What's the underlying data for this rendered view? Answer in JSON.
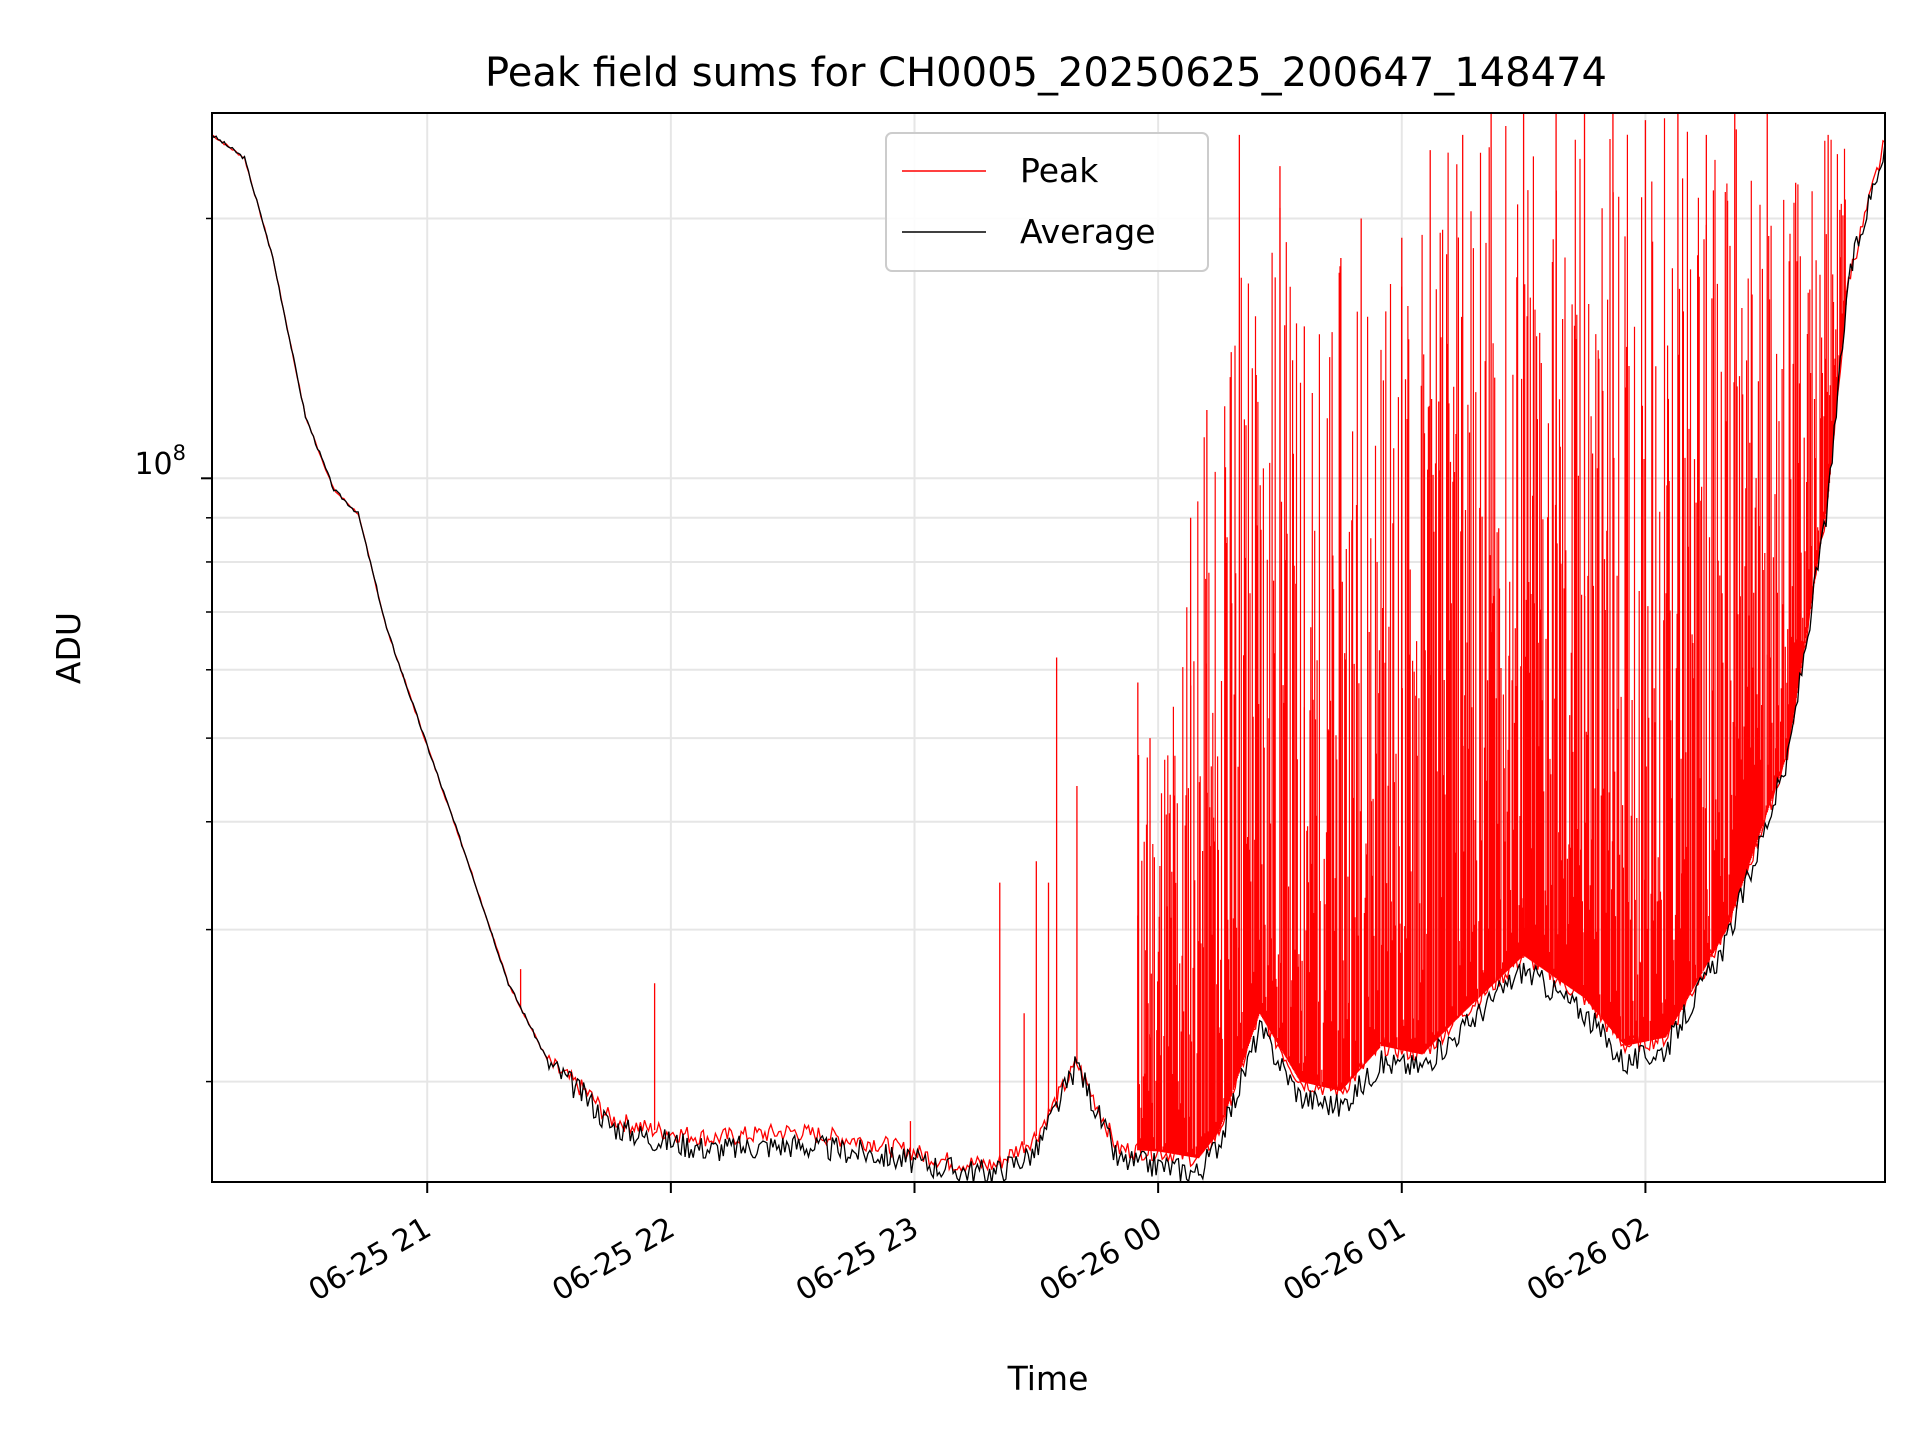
{
  "chart_data": {
    "type": "line",
    "title": "Peak field sums for CH0005_20250625_200647_148474",
    "xlabel": "Time",
    "ylabel": "ADU",
    "yscale": "log",
    "grid": true,
    "legend_placement": "top-center",
    "x_ticks": [
      "06-25 21",
      "06-25 22",
      "06-25 23",
      "06-26 00",
      "06-26 01",
      "06-26 02"
    ],
    "y_major_tick_label": "10",
    "y_major_tick_exponent": "8",
    "ylim_approx": [
      15300000,
      265000000
    ],
    "xlim_approx": [
      "2025-06-25 20:07",
      "2025-06-26 02:59"
    ],
    "series": [
      {
        "name": "Peak",
        "color": "#ff0000",
        "baseline": [
          [
            "2025-06-25 20:07",
            250000000
          ],
          [
            "2025-06-25 20:15",
            235000000
          ],
          [
            "2025-06-25 20:22",
            180000000
          ],
          [
            "2025-06-25 20:30",
            118000000
          ],
          [
            "2025-06-25 20:37",
            97000000
          ],
          [
            "2025-06-25 20:43",
            91000000
          ],
          [
            "2025-06-25 20:50",
            67000000
          ],
          [
            "2025-06-25 21:00",
            49000000
          ],
          [
            "2025-06-25 21:10",
            36000000
          ],
          [
            "2025-06-25 21:20",
            26000000
          ],
          [
            "2025-06-25 21:30",
            21000000
          ],
          [
            "2025-06-25 21:40",
            19300000
          ],
          [
            "2025-06-25 21:45",
            18100000
          ],
          [
            "2025-06-25 21:55",
            17600000
          ],
          [
            "2025-06-25 22:10",
            17200000
          ],
          [
            "2025-06-25 22:30",
            17500000
          ],
          [
            "2025-06-25 22:50",
            17000000
          ],
          [
            "2025-06-25 23:10",
            16100000
          ],
          [
            "2025-06-25 23:20",
            16000000
          ],
          [
            "2025-06-25 23:30",
            17300000
          ],
          [
            "2025-06-25 23:40",
            21000000
          ],
          [
            "2025-06-25 23:50",
            16700000
          ],
          [
            "2025-06-26 00:00",
            16600000
          ],
          [
            "2025-06-26 00:10",
            16300000
          ],
          [
            "2025-06-26 00:15",
            17500000
          ],
          [
            "2025-06-26 00:25",
            24000000
          ],
          [
            "2025-06-26 00:35",
            20000000
          ],
          [
            "2025-06-26 00:45",
            19500000
          ],
          [
            "2025-06-26 00:55",
            22000000
          ],
          [
            "2025-06-26 01:05",
            21500000
          ],
          [
            "2025-06-26 01:15",
            24000000
          ],
          [
            "2025-06-26 01:30",
            28000000
          ],
          [
            "2025-06-26 01:45",
            25000000
          ],
          [
            "2025-06-26 01:55",
            22000000
          ],
          [
            "2025-06-26 02:05",
            22500000
          ],
          [
            "2025-06-26 02:20",
            30000000
          ],
          [
            "2025-06-26 02:35",
            48000000
          ],
          [
            "2025-06-26 02:45",
            95000000
          ],
          [
            "2025-06-26 02:50",
            170000000
          ],
          [
            "2025-06-26 02:59",
            245000000
          ]
        ],
        "spikes": [
          [
            "2025-06-25 21:23",
            27000000
          ],
          [
            "2025-06-25 21:56",
            26000000
          ],
          [
            "2025-06-25 22:59",
            18000000
          ],
          [
            "2025-06-25 23:21",
            34000000
          ],
          [
            "2025-06-25 23:27",
            24000000
          ],
          [
            "2025-06-25 23:30",
            36000000
          ],
          [
            "2025-06-25 23:33",
            34000000
          ],
          [
            "2025-06-25 23:35",
            62000000
          ],
          [
            "2025-06-25 23:40",
            44000000
          ],
          [
            "2025-06-25 23:55",
            58000000
          ],
          [
            "2025-06-25 23:58",
            50000000
          ],
          [
            "2025-06-26 00:08",
            90000000
          ],
          [
            "2025-06-26 00:12",
            120000000
          ],
          [
            "2025-06-26 00:18",
            140000000
          ],
          [
            "2025-06-26 00:20",
            250000000
          ],
          [
            "2025-06-26 00:30",
            230000000
          ],
          [
            "2025-06-26 00:36",
            150000000
          ],
          [
            "2025-06-26 00:45",
            180000000
          ],
          [
            "2025-06-26 00:50",
            200000000
          ],
          [
            "2025-06-26 01:00",
            190000000
          ],
          [
            "2025-06-26 01:07",
            240000000
          ],
          [
            "2025-06-26 01:15",
            250000000
          ],
          [
            "2025-06-26 01:22",
            265000000
          ],
          [
            "2025-06-26 01:30",
            265000000
          ],
          [
            "2025-06-26 01:38",
            265000000
          ],
          [
            "2025-06-26 01:45",
            265000000
          ],
          [
            "2025-06-26 01:52",
            265000000
          ],
          [
            "2025-06-26 02:00",
            260000000
          ],
          [
            "2025-06-26 02:08",
            265000000
          ],
          [
            "2025-06-26 02:15",
            250000000
          ],
          [
            "2025-06-26 02:22",
            265000000
          ],
          [
            "2025-06-26 02:30",
            265000000
          ],
          [
            "2025-06-26 02:37",
            220000000
          ],
          [
            "2025-06-26 02:45",
            250000000
          ]
        ]
      },
      {
        "name": "Average",
        "color": "#000000",
        "values": [
          [
            "2025-06-25 20:07",
            250000000
          ],
          [
            "2025-06-25 20:15",
            235000000
          ],
          [
            "2025-06-25 20:22",
            180000000
          ],
          [
            "2025-06-25 20:30",
            118000000
          ],
          [
            "2025-06-25 20:37",
            97000000
          ],
          [
            "2025-06-25 20:43",
            91000000
          ],
          [
            "2025-06-25 20:50",
            67000000
          ],
          [
            "2025-06-25 21:00",
            49000000
          ],
          [
            "2025-06-25 21:10",
            36000000
          ],
          [
            "2025-06-25 21:20",
            26000000
          ],
          [
            "2025-06-25 21:30",
            21000000
          ],
          [
            "2025-06-25 21:40",
            19000000
          ],
          [
            "2025-06-25 21:45",
            17800000
          ],
          [
            "2025-06-25 21:55",
            17200000
          ],
          [
            "2025-06-25 22:10",
            16700000
          ],
          [
            "2025-06-25 22:30",
            16900000
          ],
          [
            "2025-06-25 22:50",
            16500000
          ],
          [
            "2025-06-25 23:10",
            15800000
          ],
          [
            "2025-06-25 23:20",
            15700000
          ],
          [
            "2025-06-25 23:30",
            16600000
          ],
          [
            "2025-06-25 23:40",
            21000000
          ],
          [
            "2025-06-25 23:50",
            16200000
          ],
          [
            "2025-06-26 00:00",
            16000000
          ],
          [
            "2025-06-26 00:10",
            15700000
          ],
          [
            "2025-06-26 00:15",
            17000000
          ],
          [
            "2025-06-26 00:25",
            23000000
          ],
          [
            "2025-06-26 00:35",
            19200000
          ],
          [
            "2025-06-26 00:45",
            18700000
          ],
          [
            "2025-06-26 00:55",
            21000000
          ],
          [
            "2025-06-26 01:05",
            20800000
          ],
          [
            "2025-06-26 01:15",
            23000000
          ],
          [
            "2025-06-26 01:30",
            27000000
          ],
          [
            "2025-06-26 01:45",
            24000000
          ],
          [
            "2025-06-26 01:55",
            21000000
          ],
          [
            "2025-06-26 02:05",
            21800000
          ],
          [
            "2025-06-26 02:20",
            29000000
          ],
          [
            "2025-06-26 02:35",
            47000000
          ],
          [
            "2025-06-26 02:45",
            94000000
          ],
          [
            "2025-06-26 02:50",
            170000000
          ],
          [
            "2025-06-26 02:59",
            245000000
          ]
        ]
      }
    ]
  }
}
